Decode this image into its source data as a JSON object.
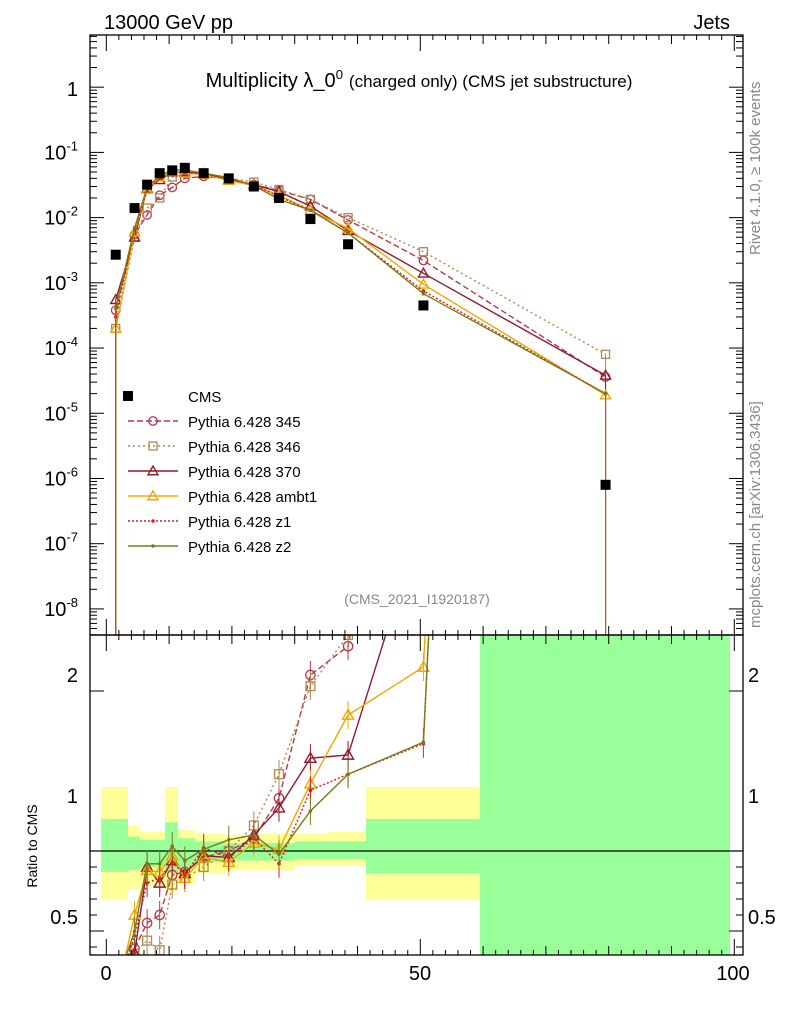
{
  "header": {
    "left": "13000 GeV pp",
    "right": "Jets"
  },
  "chart_data": {
    "type": "line",
    "title": "Multiplicity λ_0",
    "title_sup": "0",
    "title_suffix": "(charged only) (CMS jet substructure)",
    "analysis_id": "(CMS_2021_I1920187)",
    "side_right_top": "Rivet 4.1.0, ≥ 100k events",
    "side_right_bottom": "mcplots.cern.ch [arXiv:1306.3436]",
    "ratio_ylabel": "Ratio to CMS",
    "xlim": [
      -1,
      100
    ],
    "ylim_log_exp": [
      -8.4,
      0.8
    ],
    "ratio_ylim": [
      0.35,
      2.35
    ],
    "x_ticks": [
      "0",
      "50",
      "100"
    ],
    "x_tick_values": [
      0,
      50,
      100
    ],
    "y_ticks": [
      "1",
      "10^-1",
      "10^-2",
      "10^-3",
      "10^-4",
      "10^-5",
      "10^-6",
      "10^-7",
      "10^-8"
    ],
    "y_tick_exps": [
      0,
      -1,
      -2,
      -3,
      -4,
      -5,
      -6,
      -7,
      -8
    ],
    "ratio_ticks": [
      "0.5",
      "1",
      "2"
    ],
    "ratio_tick_values": [
      0.5,
      1,
      2
    ],
    "x": [
      1.5,
      4.5,
      6.5,
      8.5,
      10.5,
      12.5,
      15.5,
      19.5,
      23.5,
      27.5,
      32.5,
      38.5,
      50.5,
      79.5
    ],
    "cms": [
      0.0027,
      0.014,
      0.032,
      0.048,
      0.053,
      0.058,
      0.048,
      0.04,
      0.03,
      0.02,
      0.0095,
      0.0039,
      0.00045,
      8e-07
    ],
    "band_inner": [
      [
        -1,
        60,
        0.88,
        1.12
      ],
      [
        60,
        100,
        0.0,
        5.0
      ]
    ],
    "band_outer": [
      [
        -1,
        60,
        0.7,
        1.3
      ],
      [
        60,
        100,
        0.0,
        5.0
      ]
    ],
    "series": [
      {
        "name": "Pythia 6.428 345",
        "color": "#b03a4e",
        "dash": "6,3",
        "marker": "circle",
        "values": [
          0.00038,
          0.0055,
          0.011,
          0.022,
          0.029,
          0.04,
          0.043,
          0.039,
          0.032,
          0.026,
          0.019,
          0.0092,
          0.0022,
          3.6e-05
        ],
        "ratio": [
          0.14,
          0.39,
          0.55,
          0.6,
          0.85,
          0.87,
          0.96,
          1.0,
          1.08,
          1.33,
          2.1,
          2.28,
          4.89,
          45.0
        ]
      },
      {
        "name": "Pythia 6.428 346",
        "color": "#b0874e",
        "dash": "2,3",
        "marker": "square",
        "values": [
          0.0002,
          0.005,
          0.014,
          0.02,
          0.042,
          0.048,
          0.046,
          0.04,
          0.035,
          0.027,
          0.019,
          0.01,
          0.003,
          8e-05
        ],
        "ratio": [
          0.07,
          0.36,
          0.44,
          0.38,
          0.79,
          0.83,
          0.9,
          1.0,
          1.16,
          1.48,
          2.03,
          2.35,
          6.6,
          100.0
        ]
      },
      {
        "name": "Pythia 6.428 370",
        "color": "#8c1c2c",
        "dash": "",
        "marker": "triangle",
        "values": [
          0.00055,
          0.005,
          0.028,
          0.038,
          0.05,
          0.05,
          0.047,
          0.038,
          0.032,
          0.025,
          0.015,
          0.0063,
          0.0014,
          3.8e-05
        ],
        "ratio": [
          0.2,
          0.36,
          0.9,
          0.8,
          0.94,
          0.86,
          0.97,
          0.96,
          1.1,
          1.27,
          1.58,
          1.6,
          3.1,
          47.5
        ]
      },
      {
        "name": "Pythia 6.428 ambt1",
        "color": "#f0a800",
        "dash": "",
        "marker": "triangle",
        "values": [
          0.0002,
          0.006,
          0.027,
          0.042,
          0.051,
          0.048,
          0.046,
          0.037,
          0.031,
          0.022,
          0.013,
          0.0068,
          0.00095,
          1.9e-05
        ],
        "ratio": [
          0.07,
          0.6,
          0.88,
          0.87,
          0.97,
          0.83,
          0.96,
          0.93,
          1.05,
          1.01,
          1.42,
          1.85,
          2.15,
          23.8
        ]
      },
      {
        "name": "Pythia 6.428 z1",
        "color": "#d42020",
        "dash": "2,2",
        "marker": "dot",
        "values": [
          0.0003,
          0.0065,
          0.026,
          0.04,
          0.049,
          0.049,
          0.047,
          0.039,
          0.032,
          0.021,
          0.013,
          0.0058,
          0.00075,
          2e-05
        ],
        "ratio": [
          0.11,
          0.47,
          0.8,
          0.83,
          0.93,
          0.85,
          1.02,
          0.96,
          1.08,
          0.92,
          1.38,
          1.48,
          1.67,
          25.0
        ]
      },
      {
        "name": "Pythia 6.428 z2",
        "color": "#7a7a1a",
        "dash": "",
        "marker": "dot",
        "values": [
          0.0004,
          0.007,
          0.029,
          0.044,
          0.054,
          0.054,
          0.048,
          0.041,
          0.031,
          0.019,
          0.013,
          0.0058,
          0.00068,
          2e-05
        ],
        "ratio": [
          0.15,
          0.5,
          0.92,
          0.92,
          1.03,
          0.94,
          1.01,
          1.07,
          1.1,
          0.98,
          1.25,
          1.48,
          1.68,
          25.0
        ]
      }
    ]
  }
}
